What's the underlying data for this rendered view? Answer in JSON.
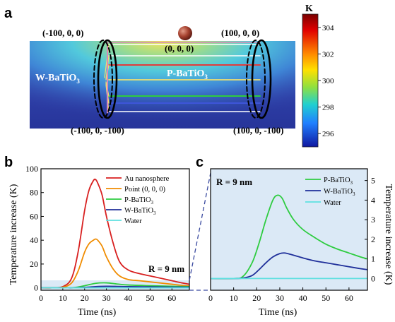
{
  "panels": {
    "a": {
      "letter": "a"
    },
    "b": {
      "letter": "b"
    },
    "c": {
      "letter": "c"
    }
  },
  "panel_a": {
    "coordinates": {
      "top_left": "(-100, 0, 0)",
      "top_right": "(100, 0, 0)",
      "center": "(0, 0, 0)",
      "bottom_left": "(-100, 0, -100)",
      "bottom_right": "(100, 0, -100)"
    },
    "labels": {
      "w_batio3": "W-BaTiO",
      "w_batio3_sub": "3",
      "p_batio3": "P-BaTiO",
      "p_batio3_sub": "3"
    },
    "colorbar": {
      "unit": "K",
      "ticks": [
        "304",
        "302",
        "300",
        "298",
        "296"
      ],
      "range": [
        295,
        305
      ]
    },
    "colors": {
      "slab": "#2f3fa6",
      "hot": "#e8d64a",
      "particle": "#8b2a1f",
      "pink": "#d98ab8",
      "yellow": "#f0e070",
      "red": "#e23b3b",
      "green": "#2ecc40",
      "blue": "#3e55d9",
      "white": "#ffffff"
    }
  },
  "chart_data": [
    {
      "id": "b",
      "type": "line",
      "xlabel": "Time (ns)",
      "ylabel": "Temperature increase (K)",
      "xlim": [
        0,
        68
      ],
      "ylim": [
        -2,
        100
      ],
      "xticks": [
        "0",
        "10",
        "20",
        "30",
        "40",
        "50",
        "60"
      ],
      "yticks": [
        "0",
        "20",
        "40",
        "60",
        "80",
        "100"
      ],
      "annotation": "R = 9 nm",
      "legend_placement": "top-right",
      "series": [
        {
          "name": "Au nanosphere",
          "color": "#d82020",
          "x": [
            0,
            5,
            10,
            14,
            17,
            20,
            22,
            24,
            25,
            26,
            28,
            30,
            33,
            36,
            40,
            45,
            50,
            55,
            60,
            65,
            68
          ],
          "y": [
            0,
            0,
            1,
            8,
            30,
            65,
            82,
            90,
            91,
            88,
            78,
            60,
            38,
            22,
            15,
            12,
            10,
            8,
            6,
            4,
            3
          ]
        },
        {
          "name": "Point (0, 0, 0)",
          "color": "#f08c00",
          "x": [
            0,
            5,
            10,
            14,
            17,
            20,
            22,
            24,
            25,
            26,
            28,
            30,
            33,
            36,
            40,
            45,
            50,
            55,
            60,
            65,
            68
          ],
          "y": [
            0,
            0,
            0.5,
            4,
            14,
            30,
            37,
            40,
            41,
            40,
            35,
            26,
            16,
            10,
            7,
            6,
            5,
            4,
            3,
            2,
            1.5
          ]
        },
        {
          "name": "P-BaTiO3",
          "color": "#2ecc40",
          "x": [
            0,
            10,
            15,
            20,
            25,
            30,
            35,
            40,
            50,
            60,
            68
          ],
          "y": [
            0,
            0,
            0.2,
            1.8,
            3.8,
            4.2,
            3.2,
            2.4,
            1.8,
            1.3,
            1.0
          ]
        },
        {
          "name": "W-BaTiO3",
          "color": "#1f2f9a",
          "x": [
            0,
            10,
            15,
            20,
            25,
            30,
            35,
            40,
            50,
            60,
            68
          ],
          "y": [
            0,
            0,
            0,
            0.4,
            1.0,
            1.3,
            1.2,
            1.0,
            0.8,
            0.6,
            0.5
          ]
        },
        {
          "name": "Water",
          "color": "#5fe0e0",
          "x": [
            0,
            68
          ],
          "y": [
            0,
            0
          ]
        }
      ]
    },
    {
      "id": "c",
      "type": "line",
      "xlabel": "Time (ns)",
      "ylabel": "Temperature increase (K)",
      "xlim": [
        0,
        68
      ],
      "ylim": [
        -0.6,
        5.6
      ],
      "xticks": [
        "0",
        "10",
        "20",
        "30",
        "40",
        "50",
        "60"
      ],
      "yticks": [
        "0",
        "1",
        "2",
        "3",
        "4",
        "5"
      ],
      "annotation": "R = 9 nm",
      "legend_placement": "top-right",
      "series": [
        {
          "name": "P-BaTiO3",
          "color": "#2ecc40",
          "x": [
            0,
            10,
            14,
            18,
            21,
            24,
            27,
            29,
            31,
            33,
            36,
            40,
            45,
            50,
            55,
            60,
            65,
            68
          ],
          "y": [
            0,
            0,
            0.1,
            0.8,
            1.8,
            3.0,
            4.0,
            4.25,
            4.1,
            3.6,
            3.0,
            2.5,
            2.1,
            1.75,
            1.5,
            1.3,
            1.1,
            1.0
          ]
        },
        {
          "name": "W-BaTiO3",
          "color": "#1f2f9a",
          "x": [
            0,
            10,
            14,
            18,
            21,
            24,
            27,
            30,
            32,
            35,
            40,
            45,
            50,
            55,
            60,
            65,
            68
          ],
          "y": [
            0,
            0,
            0.02,
            0.15,
            0.45,
            0.8,
            1.1,
            1.27,
            1.3,
            1.22,
            1.05,
            0.9,
            0.8,
            0.7,
            0.6,
            0.5,
            0.45
          ]
        },
        {
          "name": "Water",
          "color": "#5fe0e0",
          "x": [
            0,
            68
          ],
          "y": [
            0,
            0
          ]
        }
      ]
    }
  ],
  "legend_labels": {
    "b": [
      {
        "main": "Au nanosphere",
        "sub": ""
      },
      {
        "main": "Point (0, 0, 0)",
        "sub": ""
      },
      {
        "main": "P-BaTiO",
        "sub": "3"
      },
      {
        "main": "W-BaTiO",
        "sub": "3"
      },
      {
        "main": "Water",
        "sub": ""
      }
    ],
    "c": [
      {
        "main": "P-BaTiO",
        "sub": "3"
      },
      {
        "main": "W-BaTiO",
        "sub": "3"
      },
      {
        "main": "Water",
        "sub": ""
      }
    ]
  }
}
